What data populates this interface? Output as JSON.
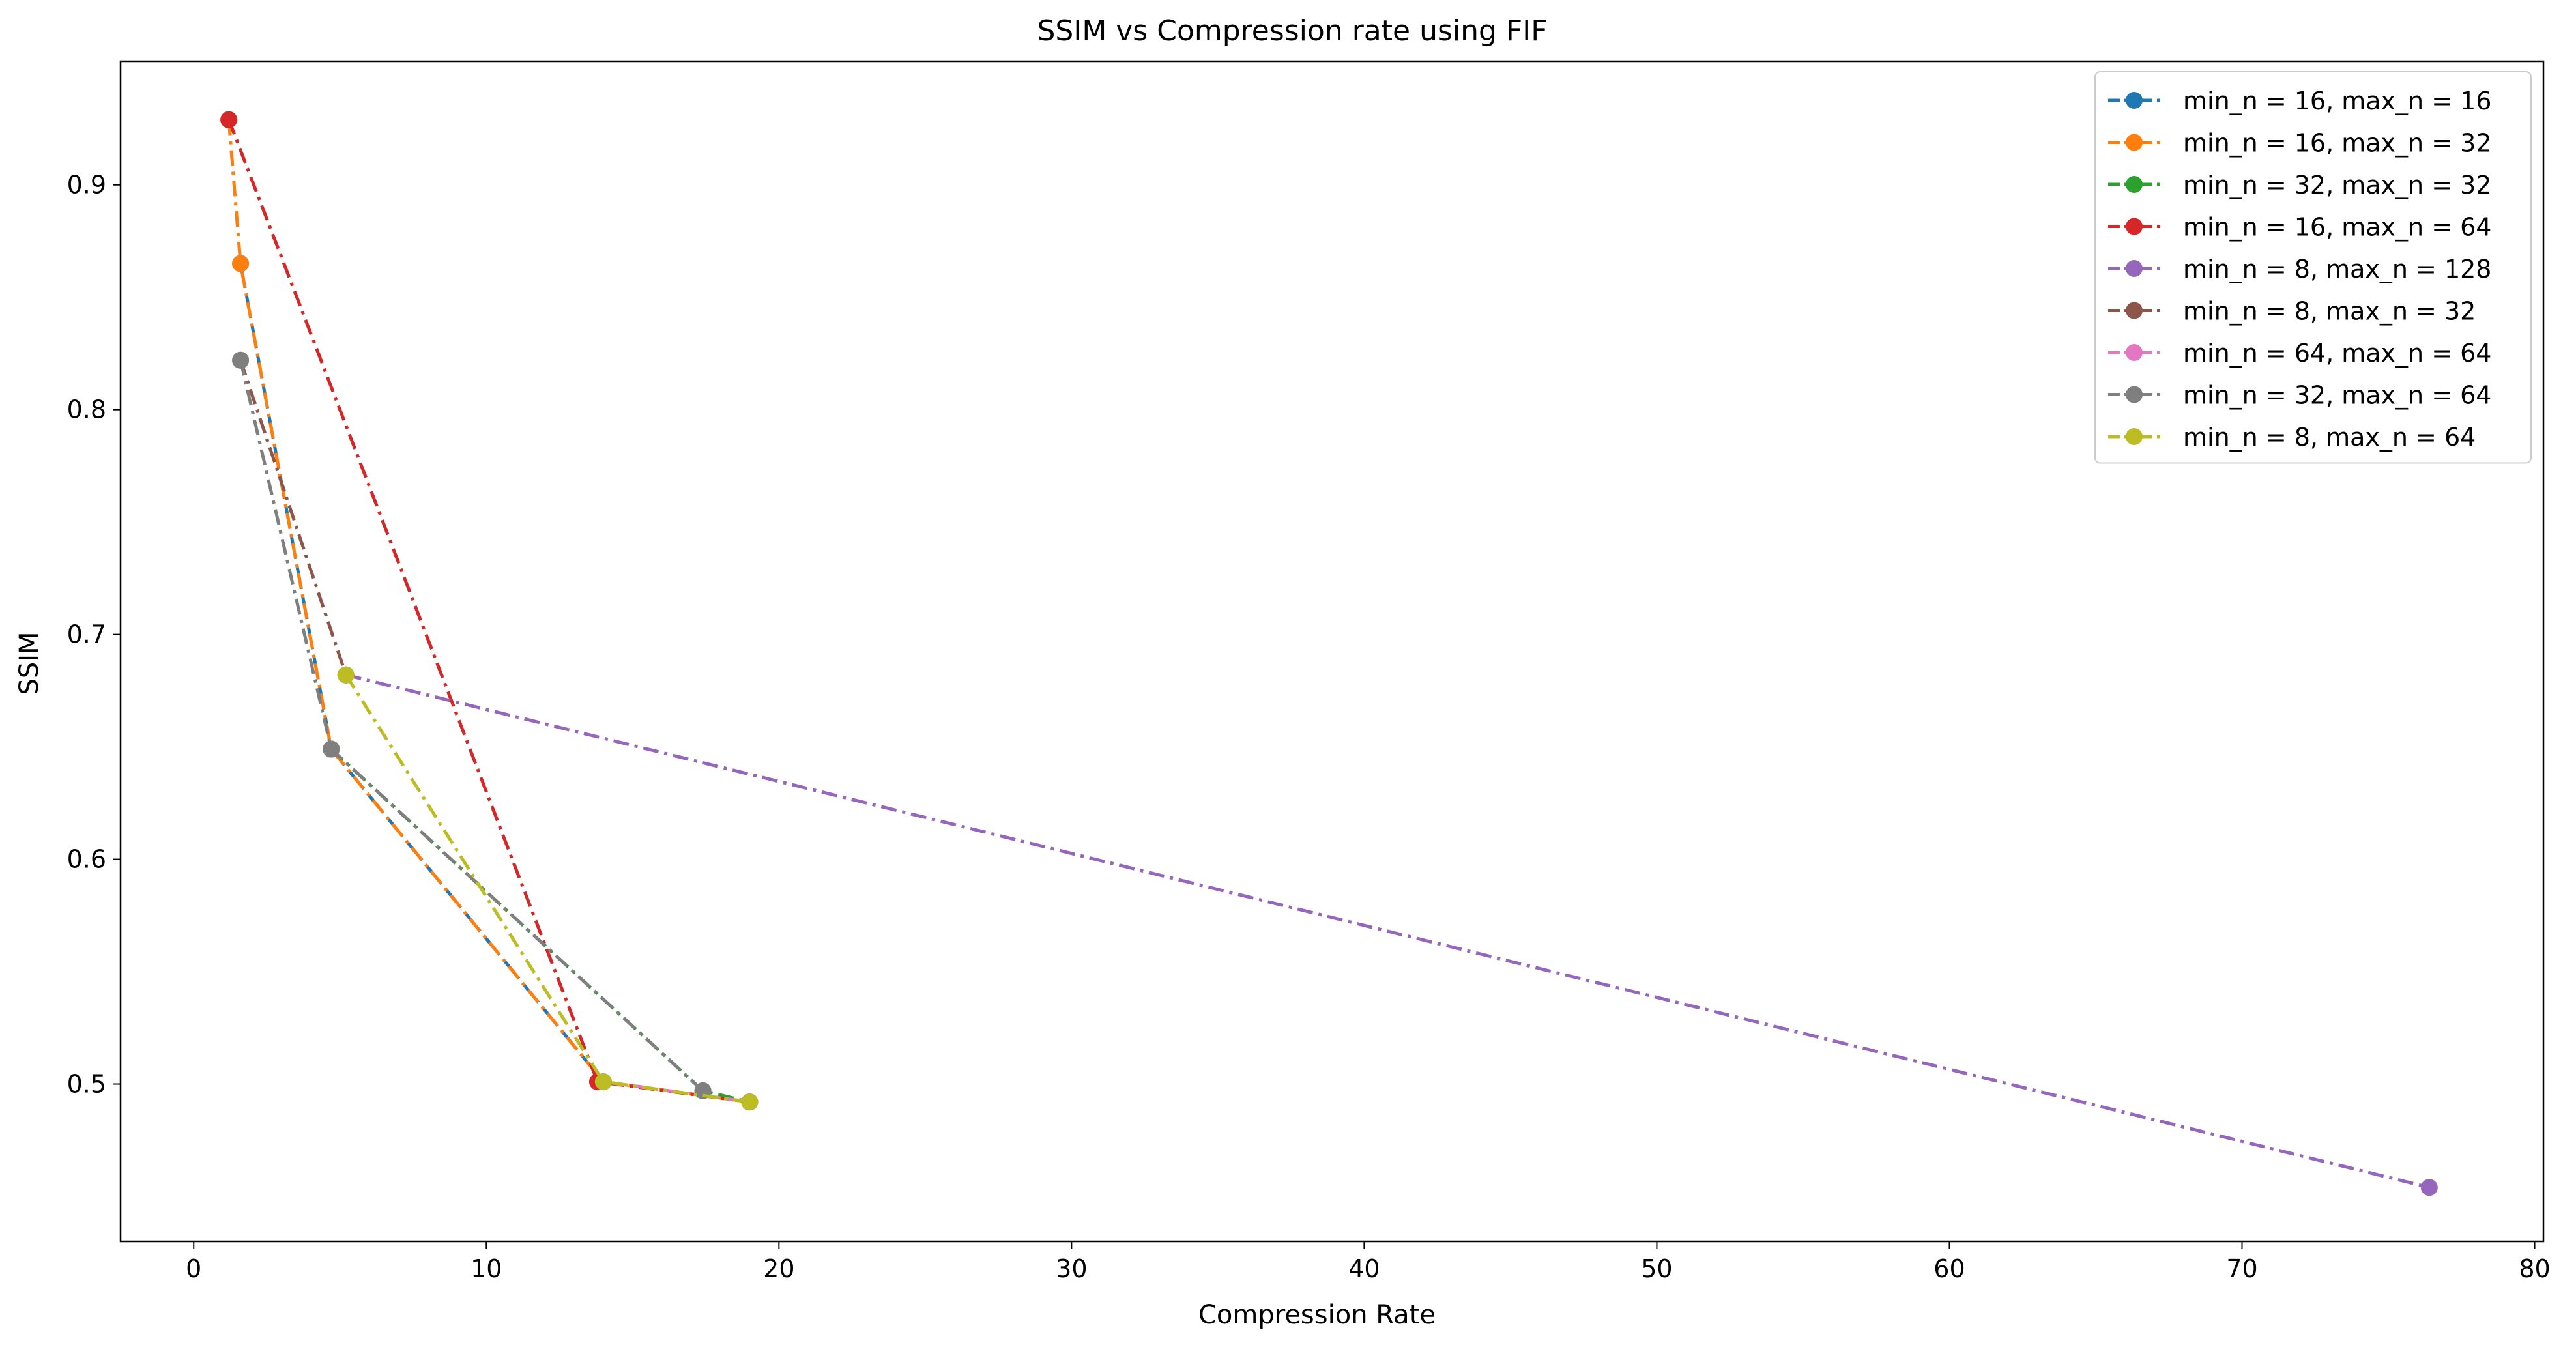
{
  "chart_data": {
    "type": "line",
    "title": "SSIM vs Compression rate using FIF",
    "xlabel": "Compression Rate",
    "ylabel": "SSIM",
    "xlim": [
      -2.5,
      80.3
    ],
    "ylim": [
      0.43,
      0.955
    ],
    "xticks": [
      0,
      10,
      20,
      30,
      40,
      50,
      60,
      70,
      80
    ],
    "yticks": [
      0.5,
      0.6,
      0.7,
      0.8,
      0.9
    ],
    "ytick_labels": [
      "0.5",
      "0.6",
      "0.7",
      "0.8",
      "0.9"
    ],
    "grid": false,
    "legend_position": "top-right",
    "series": [
      {
        "name": "min_n = 16, max_n = 16",
        "color": "#1f77b4",
        "points": [
          [
            1.6,
            0.865
          ],
          [
            4.7,
            0.649
          ],
          [
            14.0,
            0.501
          ],
          [
            19.0,
            0.492
          ]
        ]
      },
      {
        "name": "min_n = 16, max_n = 32",
        "color": "#ff7f0e",
        "points": [
          [
            1.2,
            0.929
          ],
          [
            1.6,
            0.865
          ],
          [
            4.7,
            0.649
          ],
          [
            14.0,
            0.501
          ],
          [
            19.0,
            0.492
          ]
        ]
      },
      {
        "name": "min_n = 32, max_n = 32",
        "color": "#2ca02c",
        "points": [
          [
            4.7,
            0.649
          ],
          [
            17.4,
            0.497
          ],
          [
            19.0,
            0.492
          ]
        ]
      },
      {
        "name": "min_n = 16, max_n = 64",
        "color": "#d62728",
        "points": [
          [
            1.2,
            0.929
          ],
          [
            13.8,
            0.501
          ],
          [
            19.0,
            0.492
          ]
        ]
      },
      {
        "name": "min_n = 8, max_n = 128",
        "color": "#9467bd",
        "points": [
          [
            5.2,
            0.682
          ],
          [
            76.4,
            0.454
          ]
        ]
      },
      {
        "name": "min_n = 8, max_n = 32",
        "color": "#8c564b",
        "points": [
          [
            1.6,
            0.822
          ],
          [
            5.2,
            0.682
          ]
        ]
      },
      {
        "name": "min_n = 64, max_n = 64",
        "color": "#e377c2",
        "points": [
          [
            14.0,
            0.501
          ],
          [
            19.0,
            0.492
          ]
        ]
      },
      {
        "name": "min_n = 32, max_n = 64",
        "color": "#7f7f7f",
        "points": [
          [
            1.6,
            0.822
          ],
          [
            4.7,
            0.649
          ],
          [
            17.4,
            0.497
          ]
        ]
      },
      {
        "name": "min_n = 8, max_n = 64",
        "color": "#bcbd22",
        "points": [
          [
            5.2,
            0.682
          ],
          [
            14.0,
            0.501
          ],
          [
            19.0,
            0.492
          ]
        ]
      }
    ]
  }
}
